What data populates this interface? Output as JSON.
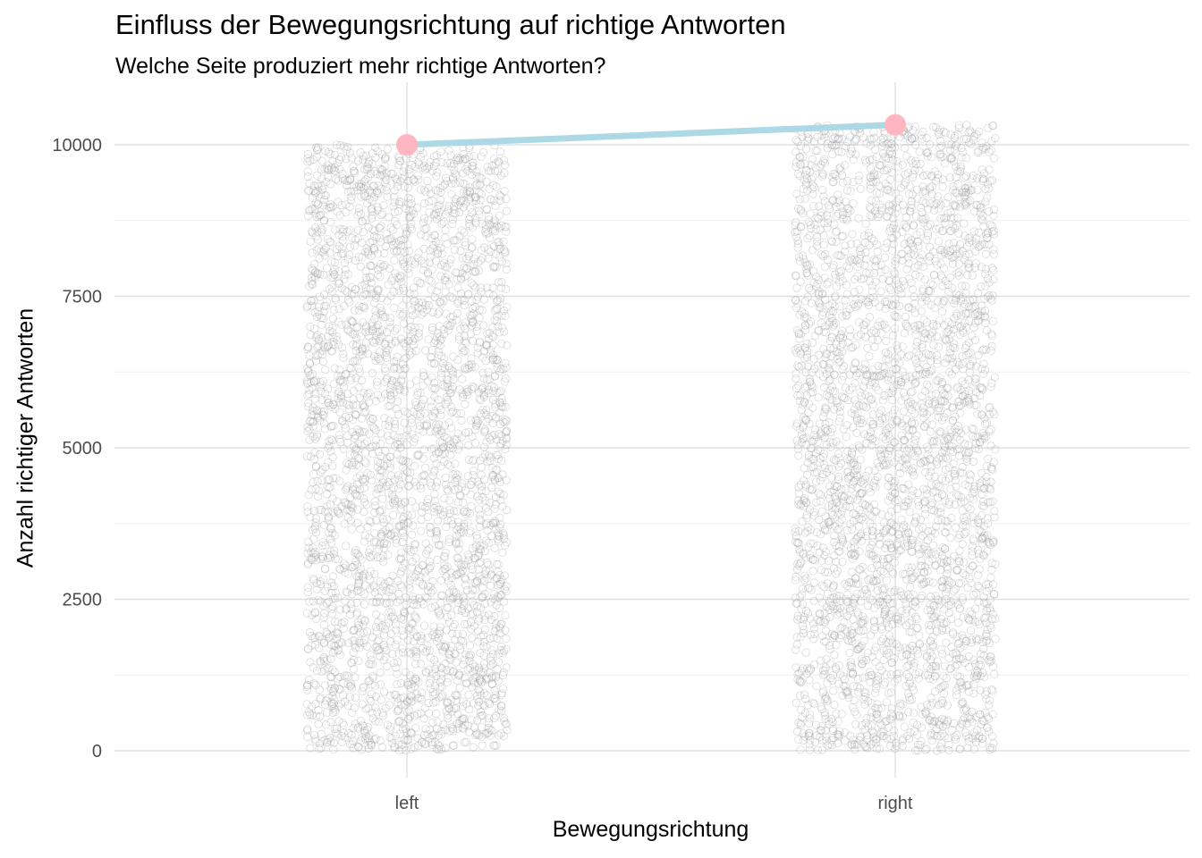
{
  "chart_data": {
    "type": "scatter",
    "title": "Einfluss der Bewegungsrichtung auf richtige Antworten",
    "subtitle": "Welche Seite produziert mehr richtige Antworten?",
    "xlabel": "Bewegungsrichtung",
    "ylabel": "Anzahl richtiger Antworten",
    "categories": [
      "left",
      "right"
    ],
    "ylim": [
      -350,
      10900
    ],
    "yticks": [
      0,
      2500,
      5000,
      7500,
      10000
    ],
    "ytick_labels": [
      "0",
      "2500",
      "5000",
      "7500",
      "10000"
    ],
    "grid": true,
    "jitter": {
      "description_values": [
        {
          "category": "left",
          "y_range": [
            0,
            10000
          ]
        },
        {
          "category": "right",
          "y_range": [
            0,
            10330
          ]
        }
      ]
    },
    "summary_series": {
      "x": [
        "left",
        "right"
      ],
      "y": [
        10000,
        10330
      ]
    },
    "colors": {
      "points": "#999999",
      "summary_line": "#add8e6",
      "summary_points": "#ffb6c1",
      "grid_major": "#e0e0e0",
      "grid_minor": "#efefef"
    }
  }
}
